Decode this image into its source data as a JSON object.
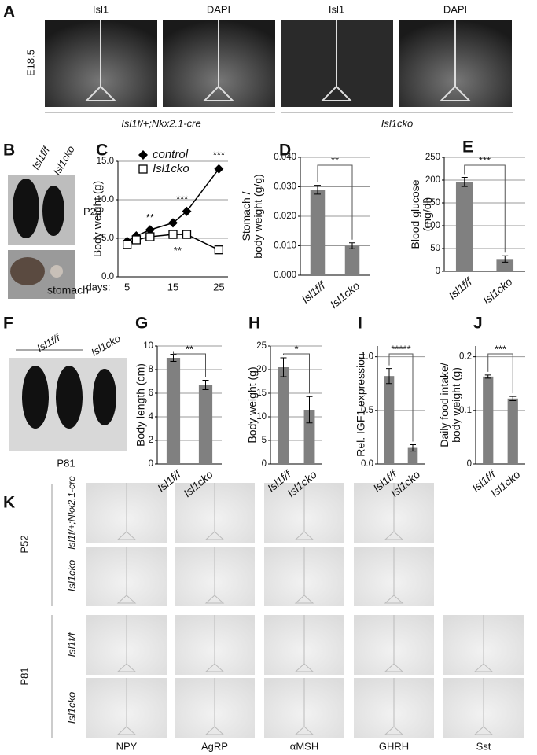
{
  "panel_a": {
    "letter": "A",
    "columns": [
      "Isl1",
      "DAPI",
      "Isl1",
      "DAPI"
    ],
    "row_label": "E18.5",
    "groups": [
      "Isl1f/+;Nkx2.1-cre",
      "Isl1cko"
    ]
  },
  "panel_b": {
    "letter": "B",
    "genotypes": [
      "Isl1f/f",
      "Isl1cko"
    ],
    "age": "P28",
    "organ": "stomach"
  },
  "panel_f": {
    "letter": "F",
    "genotypes": [
      "Isl1f/f",
      "Isl1cko"
    ],
    "age": "P81"
  },
  "panel_k": {
    "letter": "K",
    "ages": [
      "P52",
      "P81"
    ],
    "genotypes": [
      "Isl1f/+;Nkx2.1-cre",
      "Isl1cko",
      "Isl1f/f",
      "Isl1cko"
    ],
    "columns": [
      "NPY",
      "AgRP",
      "αMSH",
      "GHRH",
      "Sst"
    ]
  },
  "chart_data": [
    {
      "type": "line",
      "panel_label": "C",
      "y_label": [
        "Body weight (g)"
      ],
      "x_label": "days:",
      "x": [
        5,
        7,
        10,
        15,
        18,
        25
      ],
      "xlim": [
        3,
        27
      ],
      "xticks": [
        5,
        15,
        25
      ],
      "ylim": [
        0,
        15
      ],
      "yticks": [
        {
          "value": 0,
          "label": "0.0"
        },
        {
          "value": 5,
          "label": "5.0"
        },
        {
          "value": 10,
          "label": "10.0"
        },
        {
          "value": 15,
          "label": "15.0"
        }
      ],
      "grid": true,
      "series": [
        {
          "name": "control",
          "color": "#000000",
          "marker": "diamond",
          "values": [
            4.6,
            5.3,
            6.1,
            7.0,
            8.5,
            14.0
          ]
        },
        {
          "name": "Isl1cko",
          "color": "#000000",
          "marker": "square",
          "values": [
            4.2,
            4.8,
            5.2,
            5.5,
            5.5,
            3.5
          ]
        }
      ],
      "annotations": [
        {
          "text": "**",
          "x": 10,
          "y": 7.6
        },
        {
          "text": "***",
          "x": 17,
          "y": 10
        },
        {
          "text": "**",
          "x": 16,
          "y": 3.3
        },
        {
          "text": "***",
          "x": 25,
          "y": 15.7
        }
      ]
    },
    {
      "type": "bar",
      "panel_label": "D",
      "y_label": [
        "Stomach /",
        "body weight (g/g)"
      ],
      "categories": [
        "Isl1f/f",
        "Isl1cko"
      ],
      "values": [
        0.029,
        0.01
      ],
      "errors": [
        0.0015,
        0.001
      ],
      "color": "#808080",
      "grid": true,
      "significance": "**",
      "ylim": [
        0,
        0.04
      ],
      "yticks": [
        {
          "value": 0,
          "label": "0.000"
        },
        {
          "value": 0.01,
          "label": "0.010"
        },
        {
          "value": 0.02,
          "label": "0.020"
        },
        {
          "value": 0.03,
          "label": "0.030"
        },
        {
          "value": 0.04,
          "label": "0.040"
        }
      ]
    },
    {
      "type": "bar",
      "panel_label": "E",
      "y_label": [
        "Blood glucose",
        "(mg/dl)"
      ],
      "categories": [
        "Isl1f/f",
        "Isl1cko"
      ],
      "values": [
        196,
        27
      ],
      "errors": [
        10,
        7
      ],
      "color": "#808080",
      "grid": true,
      "significance": "***",
      "ylim": [
        0,
        250
      ],
      "yticks": [
        0,
        50,
        100,
        150,
        200,
        250
      ]
    },
    {
      "type": "bar",
      "panel_label": "G",
      "y_label": [
        "Body length (cm)"
      ],
      "categories": [
        "Isl1f/f",
        "Isl1cko"
      ],
      "values": [
        9.0,
        6.7
      ],
      "errors": [
        0.3,
        0.4
      ],
      "color": "#808080",
      "grid": true,
      "significance": "**",
      "ylim": [
        0,
        10
      ],
      "yticks": [
        0,
        2,
        4,
        6,
        8,
        10
      ]
    },
    {
      "type": "bar",
      "panel_label": "H",
      "y_label": [
        "Body weight (g)"
      ],
      "categories": [
        "Isl1f/f",
        "Isl1cko"
      ],
      "values": [
        20.5,
        11.5
      ],
      "errors": [
        2.0,
        2.8
      ],
      "color": "#808080",
      "grid": true,
      "significance": "*",
      "ylim": [
        0,
        25
      ],
      "yticks": [
        0,
        5,
        10,
        15,
        20,
        25
      ]
    },
    {
      "type": "bar",
      "panel_label": "I",
      "y_label": [
        "Rel. IGF1 expression"
      ],
      "categories": [
        "Isl1f/f",
        "Isl1cko"
      ],
      "values": [
        0.82,
        0.15
      ],
      "errors": [
        0.07,
        0.03
      ],
      "color": "#808080",
      "grid": true,
      "significance": "*****",
      "ylim": [
        0,
        1.1
      ],
      "yticks": [
        {
          "value": 0,
          "label": "0.0"
        },
        {
          "value": 0.5,
          "label": "0.5"
        },
        {
          "value": 1,
          "label": "1.0"
        }
      ]
    },
    {
      "type": "bar",
      "panel_label": "J",
      "y_label": [
        "Daily food intake/",
        "body weight (g)"
      ],
      "categories": [
        "Isl1f/f",
        "Isl1cko"
      ],
      "values": [
        0.163,
        0.122
      ],
      "errors": [
        0.003,
        0.004
      ],
      "color": "#808080",
      "grid": true,
      "significance": "***",
      "ylim": [
        0,
        0.22
      ],
      "yticks": [
        0,
        0.1,
        0.2
      ]
    }
  ]
}
